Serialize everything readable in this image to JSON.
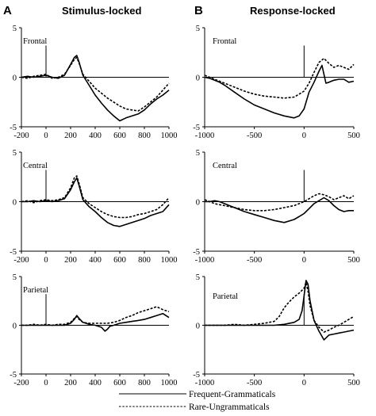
{
  "panel_letters": [
    "A",
    "B"
  ],
  "column_titles": [
    "Stimulus-locked",
    "Response-locked"
  ],
  "legend": [
    {
      "label": "Frequent-Grammaticals",
      "style": "solid"
    },
    {
      "label": "Rare-Ungrammaticals",
      "style": "dashed"
    }
  ],
  "colors": {
    "line": "#000000",
    "background": "#ffffff"
  },
  "chart_data": [
    {
      "type": "line",
      "panel": "A",
      "region": "Frontal",
      "title": "",
      "xlabel": "",
      "ylabel": "",
      "xlim": [
        -200,
        1000
      ],
      "ylim": [
        -5,
        5
      ],
      "event_marker_x": 0,
      "xticks": [
        "-200",
        "0",
        "200",
        "400",
        "600",
        "800",
        "1000"
      ],
      "yticks": [
        "5",
        "0",
        "-5"
      ],
      "series": [
        {
          "style": "solid",
          "x": [
            -200,
            -150,
            -100,
            -50,
            0,
            50,
            100,
            150,
            200,
            230,
            250,
            270,
            300,
            350,
            400,
            450,
            500,
            550,
            600,
            650,
            700,
            750,
            800,
            850,
            900,
            950,
            1000
          ],
          "y": [
            0,
            0.1,
            0,
            0.1,
            0.2,
            0,
            -0.1,
            0.2,
            1.3,
            2.0,
            2.2,
            1.5,
            0.2,
            -0.8,
            -1.8,
            -2.6,
            -3.3,
            -3.9,
            -4.4,
            -4.1,
            -3.9,
            -3.7,
            -3.3,
            -2.7,
            -2.2,
            -1.8,
            -1.3
          ]
        },
        {
          "style": "dashed",
          "x": [
            -200,
            -150,
            -100,
            -50,
            0,
            50,
            100,
            150,
            200,
            230,
            250,
            270,
            300,
            350,
            400,
            450,
            500,
            550,
            600,
            650,
            700,
            750,
            800,
            850,
            900,
            950,
            1000
          ],
          "y": [
            0,
            -0.1,
            0.1,
            0.2,
            0.3,
            -0.1,
            0,
            0.3,
            1.2,
            1.8,
            2.0,
            1.4,
            0.3,
            -0.4,
            -1.1,
            -1.6,
            -2.1,
            -2.5,
            -2.9,
            -3.2,
            -3.3,
            -3.4,
            -3.0,
            -2.5,
            -2.0,
            -1.3,
            -0.6
          ]
        }
      ]
    },
    {
      "type": "line",
      "panel": "B",
      "region": "Frontal",
      "title": "",
      "xlabel": "",
      "ylabel": "",
      "xlim": [
        -1000,
        500
      ],
      "ylim": [
        -5,
        5
      ],
      "event_marker_x": 0,
      "xticks": [
        "-1000",
        "-500",
        "0",
        "500"
      ],
      "yticks": [
        "5",
        "0",
        "-5"
      ],
      "series": [
        {
          "style": "solid",
          "x": [
            -1000,
            -950,
            -900,
            -850,
            -800,
            -700,
            -600,
            -500,
            -400,
            -300,
            -200,
            -100,
            -50,
            0,
            50,
            100,
            150,
            180,
            200,
            220,
            250,
            300,
            350,
            400,
            450,
            500
          ],
          "y": [
            0,
            -0.1,
            -0.3,
            -0.5,
            -0.8,
            -1.5,
            -2.2,
            -2.8,
            -3.2,
            -3.6,
            -3.9,
            -4.1,
            -3.9,
            -3.2,
            -1.5,
            -0.5,
            0.6,
            1.2,
            0.3,
            -0.6,
            -0.5,
            -0.3,
            -0.2,
            -0.2,
            -0.5,
            -0.4
          ]
        },
        {
          "style": "dashed",
          "x": [
            -1000,
            -950,
            -900,
            -850,
            -800,
            -700,
            -600,
            -500,
            -400,
            -300,
            -200,
            -100,
            -50,
            0,
            50,
            100,
            150,
            200,
            250,
            300,
            350,
            400,
            450,
            500
          ],
          "y": [
            0.2,
            0,
            -0.2,
            -0.4,
            -0.6,
            -1.0,
            -1.4,
            -1.7,
            -1.9,
            -2.0,
            -2.1,
            -2.0,
            -1.7,
            -1.4,
            -0.6,
            0.5,
            1.5,
            1.9,
            1.4,
            1.0,
            1.2,
            1.0,
            0.8,
            1.3
          ]
        }
      ]
    },
    {
      "type": "line",
      "panel": "A",
      "region": "Central",
      "title": "",
      "xlabel": "",
      "ylabel": "",
      "xlim": [
        -200,
        1000
      ],
      "ylim": [
        -5,
        5
      ],
      "event_marker_x": 0,
      "xticks": [
        "-200",
        "0",
        "200",
        "400",
        "600",
        "800",
        "1000"
      ],
      "yticks": [
        "5",
        "0",
        "-5"
      ],
      "series": [
        {
          "style": "solid",
          "x": [
            -200,
            -150,
            -100,
            -50,
            0,
            50,
            100,
            150,
            200,
            230,
            250,
            270,
            300,
            350,
            400,
            450,
            500,
            550,
            600,
            650,
            700,
            750,
            800,
            850,
            900,
            950,
            1000
          ],
          "y": [
            0,
            0,
            0.1,
            0,
            0.1,
            0,
            0.1,
            0.3,
            1.2,
            2.0,
            2.4,
            1.6,
            0.2,
            -0.5,
            -1.0,
            -1.6,
            -2.1,
            -2.4,
            -2.5,
            -2.3,
            -2.1,
            -1.9,
            -1.7,
            -1.4,
            -1.2,
            -1.0,
            -0.3
          ]
        },
        {
          "style": "dashed",
          "x": [
            -200,
            -150,
            -100,
            -50,
            0,
            50,
            100,
            150,
            200,
            230,
            250,
            270,
            300,
            350,
            400,
            450,
            500,
            550,
            600,
            650,
            700,
            750,
            800,
            850,
            900,
            950,
            1000
          ],
          "y": [
            0,
            0.1,
            -0.1,
            0.1,
            0.2,
            0.1,
            0.2,
            0.4,
            1.4,
            2.4,
            2.6,
            1.8,
            0.4,
            -0.2,
            -0.6,
            -1.0,
            -1.3,
            -1.5,
            -1.6,
            -1.6,
            -1.5,
            -1.3,
            -1.2,
            -1.0,
            -0.8,
            -0.3,
            0.4
          ]
        }
      ]
    },
    {
      "type": "line",
      "panel": "B",
      "region": "Central",
      "title": "",
      "xlabel": "",
      "ylabel": "",
      "xlim": [
        -1000,
        500
      ],
      "ylim": [
        -5,
        5
      ],
      "event_marker_x": 0,
      "xticks": [
        "-1000",
        "-500",
        "0",
        "500"
      ],
      "yticks": [
        "5",
        "0",
        "-5"
      ],
      "series": [
        {
          "style": "solid",
          "x": [
            -1000,
            -950,
            -900,
            -850,
            -800,
            -750,
            -700,
            -600,
            -500,
            -400,
            -300,
            -200,
            -100,
            -50,
            0,
            50,
            100,
            150,
            200,
            250,
            300,
            350,
            400,
            450,
            500
          ],
          "y": [
            0,
            0,
            0.1,
            0,
            -0.2,
            -0.4,
            -0.6,
            -1.0,
            -1.3,
            -1.6,
            -1.9,
            -2.1,
            -1.8,
            -1.5,
            -1.2,
            -0.7,
            -0.2,
            0.1,
            0.4,
            0.1,
            -0.4,
            -0.8,
            -1.0,
            -0.9,
            -0.9
          ]
        },
        {
          "style": "dashed",
          "x": [
            -1000,
            -950,
            -900,
            -850,
            -800,
            -750,
            -700,
            -600,
            -500,
            -400,
            -300,
            -200,
            -100,
            -50,
            0,
            50,
            100,
            150,
            200,
            250,
            300,
            350,
            400,
            450,
            500
          ],
          "y": [
            0.2,
            0,
            -0.2,
            -0.3,
            -0.4,
            -0.5,
            -0.6,
            -0.8,
            -0.9,
            -0.9,
            -0.8,
            -0.6,
            -0.4,
            -0.2,
            0,
            0.3,
            0.6,
            0.8,
            0.7,
            0.5,
            0.2,
            0.4,
            0.6,
            0.3,
            0.6
          ]
        }
      ]
    },
    {
      "type": "line",
      "panel": "A",
      "region": "Parietal",
      "title": "",
      "xlabel": "",
      "ylabel": "",
      "xlim": [
        -200,
        1000
      ],
      "ylim": [
        -5,
        5
      ],
      "event_marker_x": 0,
      "xticks": [
        "-200",
        "0",
        "200",
        "400",
        "600",
        "800",
        "1000"
      ],
      "yticks": [
        "5",
        "0",
        "-5"
      ],
      "series": [
        {
          "style": "solid",
          "x": [
            -200,
            -150,
            -100,
            -50,
            0,
            50,
            100,
            150,
            200,
            230,
            250,
            270,
            300,
            350,
            400,
            450,
            480,
            500,
            520,
            550,
            600,
            650,
            700,
            750,
            800,
            850,
            900,
            950,
            1000
          ],
          "y": [
            0,
            0,
            0,
            0,
            0,
            0,
            0,
            0,
            0.2,
            0.6,
            1.0,
            0.7,
            0.3,
            0.1,
            0,
            -0.2,
            -0.6,
            -0.4,
            -0.1,
            0,
            0.2,
            0.3,
            0.4,
            0.5,
            0.6,
            0.8,
            1.0,
            1.2,
            0.8
          ]
        },
        {
          "style": "dashed",
          "x": [
            -200,
            -150,
            -100,
            -50,
            0,
            50,
            100,
            150,
            200,
            230,
            250,
            270,
            300,
            350,
            400,
            450,
            500,
            550,
            600,
            650,
            700,
            750,
            800,
            850,
            900,
            950,
            1000
          ],
          "y": [
            0,
            0,
            0.1,
            0,
            0.1,
            0,
            0.1,
            0.1,
            0.3,
            0.7,
            0.9,
            0.6,
            0.3,
            0.2,
            0.2,
            0.2,
            0.2,
            0.3,
            0.5,
            0.8,
            1.0,
            1.3,
            1.5,
            1.7,
            1.9,
            1.6,
            1.4
          ]
        }
      ]
    },
    {
      "type": "line",
      "panel": "B",
      "region": "Parietal",
      "title": "",
      "xlabel": "",
      "ylabel": "",
      "xlim": [
        -1000,
        500
      ],
      "ylim": [
        -5,
        5
      ],
      "event_marker_x": 0,
      "xticks": [
        "-1000",
        "-500",
        "0",
        "500"
      ],
      "yticks": [
        "5",
        "0",
        "-5"
      ],
      "series": [
        {
          "style": "solid",
          "x": [
            -1000,
            -900,
            -800,
            -700,
            -600,
            -500,
            -400,
            -300,
            -200,
            -100,
            -50,
            -20,
            0,
            20,
            40,
            60,
            100,
            150,
            200,
            250,
            300,
            350,
            400,
            450,
            500
          ],
          "y": [
            0,
            0,
            0,
            0,
            0,
            0,
            0,
            0,
            0.1,
            0.3,
            0.6,
            1.5,
            3.0,
            4.6,
            4.2,
            2.5,
            0.5,
            -0.6,
            -1.5,
            -1.0,
            -0.9,
            -0.8,
            -0.7,
            -0.6,
            -0.5
          ]
        },
        {
          "style": "dashed",
          "x": [
            -1000,
            -900,
            -800,
            -700,
            -600,
            -500,
            -400,
            -300,
            -250,
            -200,
            -150,
            -100,
            -50,
            0,
            20,
            40,
            60,
            100,
            150,
            200,
            250,
            300,
            350,
            400,
            450,
            500
          ],
          "y": [
            0,
            0,
            0,
            0.1,
            0,
            0.1,
            0.2,
            0.4,
            0.9,
            1.8,
            2.4,
            2.9,
            3.3,
            3.8,
            4.4,
            3.5,
            2.0,
            0.5,
            -0.2,
            -0.7,
            -0.5,
            -0.2,
            0,
            0.3,
            0.6,
            0.9
          ]
        }
      ]
    }
  ]
}
